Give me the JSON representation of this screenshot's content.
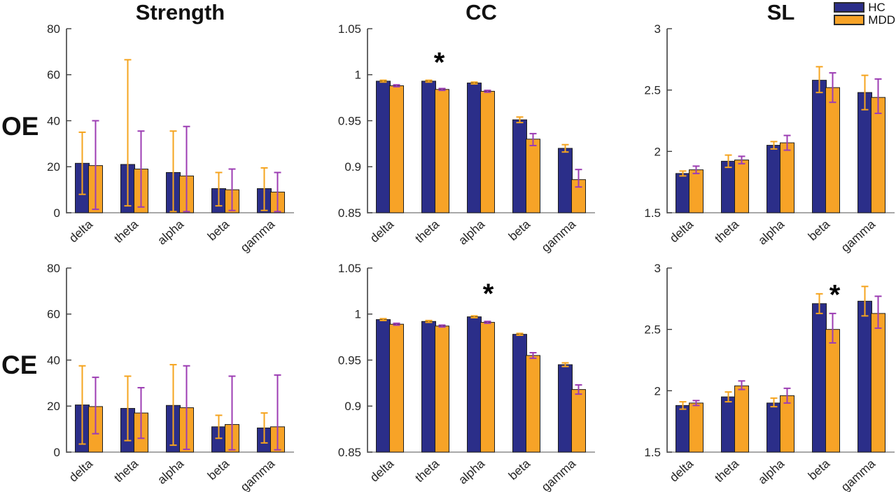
{
  "figure": {
    "columns": [
      {
        "title": "Strength"
      },
      {
        "title": "CC"
      },
      {
        "title": "SL"
      }
    ],
    "rows": [
      {
        "label": "OE"
      },
      {
        "label": "CE"
      }
    ],
    "legend": {
      "items": [
        {
          "label": "HC",
          "color": "#2B2E89"
        },
        {
          "label": "MDD",
          "color": "#F7A327"
        }
      ]
    },
    "colors": {
      "hc_bar": "#2B2E89",
      "mdd_bar": "#F7A327",
      "hc_whisker": "#F5A41F",
      "mdd_whisker": "#9C3DB3",
      "bar_edge": "#1E1E1E",
      "y_axis": "#3F3F3F",
      "x_axis": "#8C8C8C",
      "tick_text": "#262626",
      "star": "#000000"
    }
  },
  "chart_data": [
    {
      "id": "oe-strength",
      "type": "bar",
      "grid": {
        "row": 0,
        "col": 0
      },
      "row_label": "OE",
      "title": "Strength",
      "categories": [
        "delta",
        "theta",
        "alpha",
        "beta",
        "gamma"
      ],
      "ylim": [
        0,
        80
      ],
      "yticks": [
        0,
        20,
        40,
        60,
        80
      ],
      "ytick_labels": [
        "0",
        "20",
        "40",
        "60",
        "80"
      ],
      "series": [
        {
          "name": "HC",
          "values": [
            21.5,
            21,
            17.5,
            10.5,
            10.5
          ],
          "whisker_hi": [
            35,
            66.5,
            35.5,
            17.5,
            19.5
          ],
          "whisker_lo": [
            8,
            3,
            0.5,
            3,
            1
          ]
        },
        {
          "name": "MDD",
          "values": [
            20.5,
            19,
            16,
            10,
            9
          ],
          "whisker_hi": [
            40,
            35.5,
            37.5,
            19,
            17.5
          ],
          "whisker_lo": [
            1.5,
            2.5,
            0.5,
            1,
            0.5
          ]
        }
      ],
      "star": null
    },
    {
      "id": "oe-cc",
      "type": "bar",
      "grid": {
        "row": 0,
        "col": 1
      },
      "row_label": "OE",
      "title": "CC",
      "categories": [
        "delta",
        "theta",
        "alpha",
        "beta",
        "gamma"
      ],
      "ylim": [
        0.85,
        1.05
      ],
      "yticks": [
        0.85,
        0.9,
        0.95,
        1,
        1.05
      ],
      "ytick_labels": [
        "0.85",
        "0.9",
        "0.95",
        "1",
        "1.05"
      ],
      "series": [
        {
          "name": "HC",
          "values": [
            0.993,
            0.993,
            0.991,
            0.951,
            0.92
          ],
          "whisker_hi": [
            0.994,
            0.994,
            0.992,
            0.954,
            0.924
          ],
          "whisker_lo": [
            0.992,
            0.992,
            0.99,
            0.948,
            0.916
          ]
        },
        {
          "name": "MDD",
          "values": [
            0.988,
            0.984,
            0.982,
            0.93,
            0.886
          ],
          "whisker_hi": [
            0.989,
            0.985,
            0.983,
            0.936,
            0.897
          ],
          "whisker_lo": [
            0.987,
            0.983,
            0.981,
            0.923,
            0.878
          ]
        }
      ],
      "star": {
        "category": "theta",
        "index": 1,
        "value": 1.013,
        "dx": 5
      }
    },
    {
      "id": "oe-sl",
      "type": "bar",
      "grid": {
        "row": 0,
        "col": 2
      },
      "row_label": "OE",
      "title": "SL",
      "categories": [
        "delta",
        "theta",
        "alpha",
        "beta",
        "gamma"
      ],
      "ylim": [
        1.5,
        3
      ],
      "yticks": [
        1.5,
        2,
        2.5,
        3
      ],
      "ytick_labels": [
        "1.5",
        "2",
        "2.5",
        "3"
      ],
      "series": [
        {
          "name": "HC",
          "values": [
            1.82,
            1.92,
            2.05,
            2.58,
            2.48
          ],
          "whisker_hi": [
            1.84,
            1.97,
            2.08,
            2.69,
            2.62
          ],
          "whisker_lo": [
            1.8,
            1.87,
            2.02,
            2.48,
            2.34
          ]
        },
        {
          "name": "MDD",
          "values": [
            1.85,
            1.93,
            2.07,
            2.52,
            2.44
          ],
          "whisker_hi": [
            1.88,
            1.96,
            2.13,
            2.64,
            2.59
          ],
          "whisker_lo": [
            1.82,
            1.9,
            2.01,
            2.4,
            2.31
          ]
        }
      ],
      "star": null
    },
    {
      "id": "ce-strength",
      "type": "bar",
      "grid": {
        "row": 1,
        "col": 0
      },
      "row_label": "CE",
      "title": "Strength",
      "categories": [
        "delta",
        "theta",
        "alpha",
        "beta",
        "gamma"
      ],
      "ylim": [
        0,
        80
      ],
      "yticks": [
        0,
        20,
        40,
        60,
        80
      ],
      "ytick_labels": [
        "0",
        "20",
        "40",
        "60",
        "80"
      ],
      "series": [
        {
          "name": "HC",
          "values": [
            20.5,
            19,
            20.3,
            11,
            10.5
          ],
          "whisker_hi": [
            37.5,
            33,
            38,
            16,
            17
          ],
          "whisker_lo": [
            3.5,
            5,
            3,
            6,
            4
          ]
        },
        {
          "name": "MDD",
          "values": [
            19.8,
            17,
            19.3,
            12,
            11
          ],
          "whisker_hi": [
            32.5,
            28,
            37.5,
            33,
            33.5
          ],
          "whisker_lo": [
            8,
            6,
            1.2,
            1,
            1
          ]
        }
      ],
      "star": null
    },
    {
      "id": "ce-cc",
      "type": "bar",
      "grid": {
        "row": 1,
        "col": 1
      },
      "row_label": "CE",
      "title": "CC",
      "categories": [
        "delta",
        "theta",
        "alpha",
        "beta",
        "gamma"
      ],
      "ylim": [
        0.85,
        1.05
      ],
      "yticks": [
        0.85,
        0.9,
        0.95,
        1,
        1.05
      ],
      "ytick_labels": [
        "0.85",
        "0.9",
        "0.95",
        "1",
        "1.05"
      ],
      "series": [
        {
          "name": "HC",
          "values": [
            0.994,
            0.992,
            0.997,
            0.978,
            0.945
          ],
          "whisker_hi": [
            0.995,
            0.993,
            0.998,
            0.979,
            0.947
          ],
          "whisker_lo": [
            0.993,
            0.991,
            0.996,
            0.977,
            0.943
          ]
        },
        {
          "name": "MDD",
          "values": [
            0.989,
            0.987,
            0.991,
            0.955,
            0.918
          ],
          "whisker_hi": [
            0.99,
            0.988,
            0.992,
            0.958,
            0.923
          ],
          "whisker_lo": [
            0.988,
            0.986,
            0.99,
            0.952,
            0.913
          ]
        }
      ],
      "star": {
        "category": "alpha",
        "index": 2,
        "value": 1.022,
        "dx": 10
      }
    },
    {
      "id": "ce-sl",
      "type": "bar",
      "grid": {
        "row": 1,
        "col": 2
      },
      "row_label": "CE",
      "title": "SL",
      "categories": [
        "delta",
        "theta",
        "alpha",
        "beta",
        "gamma"
      ],
      "ylim": [
        1.5,
        3
      ],
      "yticks": [
        1.5,
        2,
        2.5,
        3
      ],
      "ytick_labels": [
        "1.5",
        "2",
        "2.5",
        "3"
      ],
      "series": [
        {
          "name": "HC",
          "values": [
            1.88,
            1.95,
            1.9,
            2.71,
            2.73
          ],
          "whisker_hi": [
            1.91,
            1.99,
            1.94,
            2.79,
            2.85
          ],
          "whisker_lo": [
            1.85,
            1.91,
            1.87,
            2.63,
            2.61
          ]
        },
        {
          "name": "MDD",
          "values": [
            1.9,
            2.04,
            1.96,
            2.5,
            2.63
          ],
          "whisker_hi": [
            1.92,
            2.08,
            2.02,
            2.63,
            2.77
          ],
          "whisker_lo": [
            1.88,
            2.01,
            1.9,
            2.39,
            2.51
          ]
        }
      ],
      "star": {
        "category": "beta",
        "index": 3,
        "value": 2.78,
        "dx": 12
      }
    }
  ]
}
